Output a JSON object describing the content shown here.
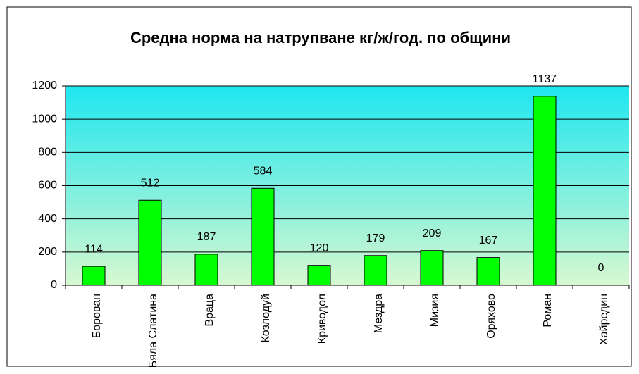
{
  "chart_data": {
    "type": "bar",
    "title": "Средна норма на натрупване кг/ж/год. по общини",
    "categories": [
      "Борован",
      "Бяла Слатина",
      "Враца",
      "Козлодуй",
      "Криводол",
      "Мездра",
      "Мизия",
      "Оряхово",
      "Роман",
      "Хайредин"
    ],
    "values": [
      114,
      512,
      187,
      584,
      120,
      179,
      209,
      167,
      1137,
      0
    ],
    "color": "#00ff00",
    "ylim": [
      0,
      1200
    ],
    "yticks": [
      0,
      200,
      400,
      600,
      800,
      1000,
      1200
    ],
    "grid": true
  }
}
